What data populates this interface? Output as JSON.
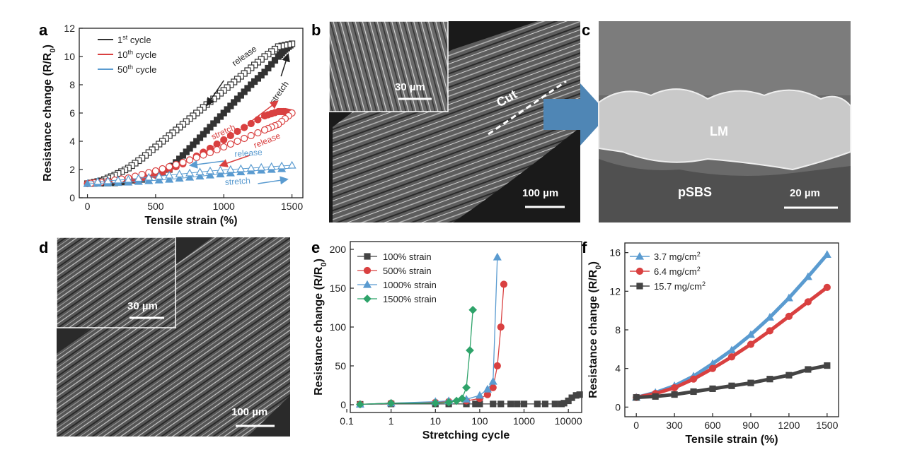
{
  "panel_labels": {
    "a": "a",
    "b": "b",
    "c": "c",
    "d": "d",
    "e": "e",
    "f": "f"
  },
  "chart_data": [
    {
      "panel": "a",
      "type": "line",
      "xlabel": "Tensile strain (%)",
      "ylabel": "Resistance change (R/R0)",
      "xlim": [
        -60,
        1580
      ],
      "ylim": [
        0,
        12
      ],
      "xticks": [
        0,
        500,
        1000,
        1500
      ],
      "yticks": [
        0,
        2,
        4,
        6,
        8,
        10,
        12
      ],
      "legend_position": "top-left",
      "series": [
        {
          "name": "1st cycle",
          "color": "#333333",
          "stretch": {
            "x": [
              0,
              200,
              400,
              600,
              700,
              800,
              900,
              1000,
              1100,
              1200,
              1300,
              1400,
              1450,
              1500
            ],
            "y": [
              1,
              1.05,
              1.3,
              2.0,
              3.0,
              4.0,
              5.0,
              6.0,
              7.0,
              8.0,
              8.9,
              10.0,
              10.5,
              10.9
            ]
          },
          "release": {
            "x": [
              1500,
              1400,
              1300,
              1200,
              1100,
              1000,
              900,
              800,
              700,
              600,
              500,
              400,
              300,
              200,
              100,
              0
            ],
            "y": [
              10.9,
              10.7,
              10.0,
              9.2,
              8.4,
              7.6,
              6.8,
              6.0,
              5.2,
              4.4,
              3.6,
              2.8,
              2.1,
              1.6,
              1.2,
              1.0
            ]
          },
          "annotations": [
            "release",
            "stretch"
          ]
        },
        {
          "name": "10th cycle",
          "color": "#d94040",
          "stretch": {
            "x": [
              0,
              300,
              500,
              700,
              900,
              1100,
              1300,
              1400,
              1450,
              1500
            ],
            "y": [
              1,
              1.2,
              1.6,
              2.4,
              3.5,
              4.7,
              5.8,
              6.1,
              6.1,
              6.0
            ]
          },
          "release": {
            "x": [
              1500,
              1400,
              1300,
              1100,
              900,
              700,
              500,
              300,
              100,
              0
            ],
            "y": [
              6.0,
              5.2,
              4.8,
              4.0,
              3.2,
              2.5,
              1.9,
              1.4,
              1.1,
              1.0
            ]
          },
          "annotations": [
            "stretch",
            "release"
          ]
        },
        {
          "name": "50th cycle",
          "color": "#5a9bd0",
          "stretch": {
            "x": [
              0,
              300,
              600,
              900,
              1200,
              1500
            ],
            "y": [
              1,
              1.1,
              1.3,
              1.6,
              1.9,
              2.1
            ]
          },
          "release": {
            "x": [
              1500,
              1200,
              900,
              600,
              300,
              0
            ],
            "y": [
              2.3,
              2.1,
              1.9,
              1.6,
              1.3,
              1.1
            ]
          },
          "annotations": [
            "release",
            "stretch"
          ]
        }
      ]
    },
    {
      "panel": "e",
      "type": "line",
      "xscale": "log",
      "xlabel": "Stretching cycle",
      "ylabel": "Resistance change (R/R0)",
      "xlim": [
        0.12,
        20000
      ],
      "ylim": [
        -10,
        210
      ],
      "xticks": [
        0.1,
        1,
        10,
        100,
        1000,
        10000
      ],
      "xticklabels": [
        "0.1",
        "1",
        "10",
        "100",
        "1000",
        "10000"
      ],
      "yticks": [
        0,
        50,
        100,
        150,
        200
      ],
      "legend_position": "top-left",
      "series": [
        {
          "name": "100% strain",
          "color": "#444444",
          "marker": "square",
          "x": [
            0.2,
            1,
            10,
            20,
            50,
            80,
            100,
            200,
            300,
            500,
            700,
            1000,
            2000,
            3000,
            5000,
            7000,
            8000,
            10000,
            12000,
            15000,
            18000
          ],
          "y": [
            0.5,
            1,
            1,
            1,
            1,
            1,
            1,
            1,
            1,
            1,
            1,
            1,
            1,
            1,
            1,
            1,
            2,
            5,
            9,
            12,
            13
          ]
        },
        {
          "name": "500% strain",
          "color": "#d94040",
          "marker": "circle",
          "x": [
            0.2,
            1,
            10,
            20,
            50,
            100,
            150,
            200,
            250,
            300,
            350
          ],
          "y": [
            0.5,
            2,
            3,
            4,
            5,
            8,
            13,
            22,
            50,
            100,
            155
          ]
        },
        {
          "name": "1000% strain",
          "color": "#5a9bd0",
          "marker": "triangle",
          "x": [
            0.2,
            1,
            10,
            20,
            50,
            100,
            150,
            200,
            250
          ],
          "y": [
            0.5,
            2,
            4,
            5,
            7,
            12,
            20,
            30,
            190
          ]
        },
        {
          "name": "1500% strain",
          "color": "#2ea36a",
          "marker": "diamond",
          "x": [
            0.2,
            1,
            10,
            20,
            30,
            40,
            50,
            60,
            70
          ],
          "y": [
            0.5,
            2,
            2,
            3,
            5,
            8,
            22,
            70,
            122
          ]
        }
      ]
    },
    {
      "panel": "f",
      "type": "line",
      "xlabel": "Tensile strain (%)",
      "ylabel": "Resistance change (R/R0)",
      "xlim": [
        -90,
        1590
      ],
      "ylim": [
        -1,
        17
      ],
      "xticks": [
        0,
        300,
        600,
        900,
        1200,
        1500
      ],
      "yticks": [
        0,
        4,
        8,
        12,
        16
      ],
      "legend_position": "top-left",
      "series": [
        {
          "name": "3.7 mg/cm2",
          "color": "#5a9bd0",
          "marker": "triangle",
          "x": [
            0,
            150,
            300,
            450,
            600,
            750,
            900,
            1050,
            1200,
            1350,
            1500
          ],
          "y": [
            1.0,
            1.5,
            2.2,
            3.2,
            4.5,
            5.9,
            7.5,
            9.3,
            11.3,
            13.5,
            15.8
          ]
        },
        {
          "name": "6.4 mg/cm2",
          "color": "#d94040",
          "marker": "circle",
          "x": [
            0,
            150,
            300,
            450,
            600,
            750,
            900,
            1050,
            1200,
            1350,
            1500
          ],
          "y": [
            1.0,
            1.4,
            2.0,
            2.9,
            4.0,
            5.2,
            6.5,
            7.9,
            9.4,
            10.9,
            12.4
          ]
        },
        {
          "name": "15.7 mg/cm2",
          "color": "#444444",
          "marker": "square",
          "x": [
            0,
            150,
            300,
            450,
            600,
            750,
            900,
            1050,
            1200,
            1350,
            1500
          ],
          "y": [
            1.0,
            1.1,
            1.3,
            1.6,
            1.9,
            2.2,
            2.5,
            2.9,
            3.3,
            3.9,
            4.3
          ]
        }
      ]
    }
  ],
  "sem": {
    "b": {
      "inset_scale": "30 µm",
      "main_scale": "100 µm",
      "cut_label": "Cut"
    },
    "c": {
      "region1": "LM",
      "region2": "pSBS",
      "scale": "20 µm"
    },
    "d": {
      "inset_scale": "30 µm",
      "main_scale": "100 µm"
    }
  }
}
